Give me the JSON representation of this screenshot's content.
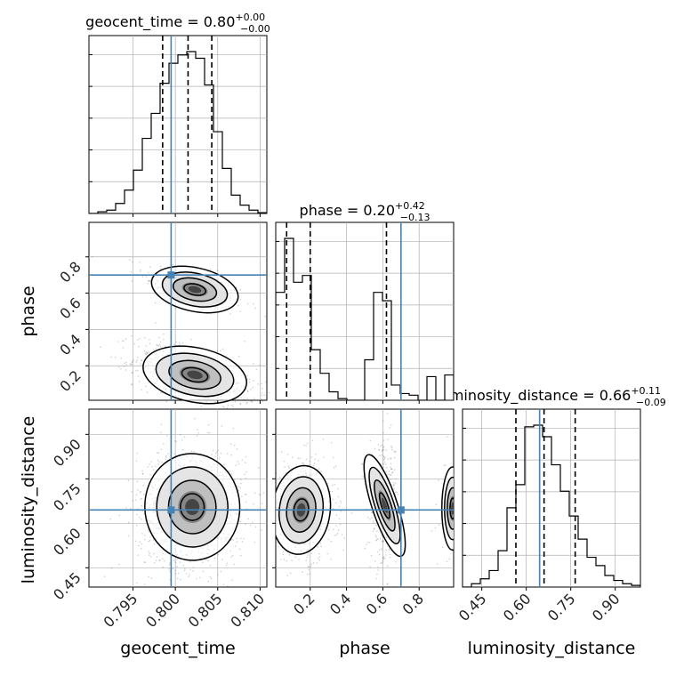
{
  "colors": {
    "truth": "#4682b4",
    "line": "#000000",
    "grid": "#b0b0b0",
    "scatter": "#555555"
  },
  "titles": [
    {
      "param": "geocent_time",
      "value": "0.80",
      "upper": "+0.00",
      "lower": "−0.00"
    },
    {
      "param": "phase",
      "value": "0.20",
      "upper": "+0.42",
      "lower": "−0.13"
    },
    {
      "param": "luminosity_distance",
      "value": "0.66",
      "upper": "+0.11",
      "lower": "−0.09"
    }
  ],
  "eq": " = ",
  "chart_data": {
    "type": "corner",
    "parameters": [
      "geocent_time",
      "phase",
      "luminosity_distance"
    ],
    "axis_labels": [
      "geocent_time",
      "phase",
      "luminosity_distance"
    ],
    "ranges": [
      [
        0.7898,
        0.8108
      ],
      [
        0.01,
        0.99
      ],
      [
        0.385,
        0.985
      ]
    ],
    "ticks": {
      "geocent_time": {
        "values": [
          0.795,
          0.8,
          0.805,
          0.81
        ],
        "labels": [
          "0.795",
          "0.800",
          "0.805",
          "0.810"
        ]
      },
      "phase": {
        "values": [
          0.2,
          0.4,
          0.6,
          0.8
        ],
        "labels": [
          "0.2",
          "0.4",
          "0.6",
          "0.8"
        ]
      },
      "luminosity_distance": {
        "values": [
          0.45,
          0.6,
          0.75,
          0.9
        ],
        "labels": [
          "0.45",
          "0.60",
          "0.75",
          "0.90"
        ]
      }
    },
    "truths": {
      "geocent_time": 0.7995,
      "phase": 0.7,
      "luminosity_distance": 0.645
    },
    "quantiles": {
      "geocent_time": [
        0.7985,
        0.8015,
        0.8043
      ],
      "phase": [
        0.07,
        0.2,
        0.62
      ],
      "luminosity_distance": [
        0.565,
        0.66,
        0.765
      ]
    },
    "hist_1d": {
      "geocent_time": {
        "edges": [
          0.7898,
          0.79085,
          0.7919,
          0.79295,
          0.794,
          0.79505,
          0.7961,
          0.79715,
          0.7982,
          0.79925,
          0.8003,
          0.80135,
          0.8024,
          0.80345,
          0.8045,
          0.80555,
          0.8066,
          0.80765,
          0.8087,
          0.80975,
          0.8108
        ],
        "counts": [
          0,
          0.01,
          0.02,
          0.06,
          0.14,
          0.26,
          0.45,
          0.6,
          0.78,
          0.9,
          0.95,
          0.97,
          0.93,
          0.77,
          0.49,
          0.27,
          0.11,
          0.05,
          0.02,
          0.005
        ]
      },
      "phase": {
        "edges": [
          0.01,
          0.059,
          0.108,
          0.157,
          0.206,
          0.255,
          0.304,
          0.353,
          0.402,
          0.451,
          0.5,
          0.549,
          0.598,
          0.647,
          0.696,
          0.745,
          0.794,
          0.843,
          0.892,
          0.941,
          0.99
        ],
        "counts": [
          0.64,
          0.96,
          0.7,
          0.74,
          0.3,
          0.16,
          0.05,
          0.01,
          0.0,
          0.0,
          0.24,
          0.64,
          0.59,
          0.09,
          0.04,
          0.03,
          0.0,
          0.14,
          0.0,
          0.15
        ]
      },
      "luminosity_distance": {
        "edges": [
          0.385,
          0.415,
          0.445,
          0.475,
          0.505,
          0.535,
          0.565,
          0.595,
          0.625,
          0.655,
          0.685,
          0.715,
          0.745,
          0.775,
          0.805,
          0.835,
          0.865,
          0.895,
          0.925,
          0.955,
          0.985
        ],
        "counts": [
          0,
          0.02,
          0.05,
          0.1,
          0.22,
          0.48,
          0.62,
          0.97,
          0.98,
          0.91,
          0.74,
          0.58,
          0.43,
          0.29,
          0.18,
          0.13,
          0.07,
          0.04,
          0.02,
          0.01
        ]
      }
    },
    "clusters_2d": [
      {
        "x": "geocent_time",
        "y": "phase",
        "cx": 0.8023,
        "cy": 0.62,
        "sx": 0.0026,
        "sy": 0.06,
        "rho": -0.55,
        "weight": 0.3
      },
      {
        "x": "geocent_time",
        "y": "phase",
        "cx": 0.8023,
        "cy": 0.15,
        "sx": 0.0031,
        "sy": 0.075,
        "rho": -0.5,
        "weight": 0.7
      },
      {
        "x": "geocent_time",
        "y": "luminosity_distance",
        "cx": 0.802,
        "cy": 0.655,
        "sx": 0.0028,
        "sy": 0.09,
        "rho": 0.05,
        "weight": 1.0
      },
      {
        "x": "phase",
        "y": "luminosity_distance",
        "cx": 0.15,
        "cy": 0.645,
        "sx": 0.08,
        "sy": 0.075,
        "rho": -0.1,
        "weight": 0.6
      },
      {
        "x": "phase",
        "y": "luminosity_distance",
        "cx": 0.61,
        "cy": 0.66,
        "sx": 0.035,
        "sy": 0.09,
        "rho": 0.1,
        "weight": 0.32
      },
      {
        "x": "phase",
        "y": "luminosity_distance",
        "cx": 0.985,
        "cy": 0.65,
        "sx": 0.03,
        "sy": 0.07,
        "rho": 0.0,
        "weight": 0.08
      }
    ],
    "grid": true
  }
}
